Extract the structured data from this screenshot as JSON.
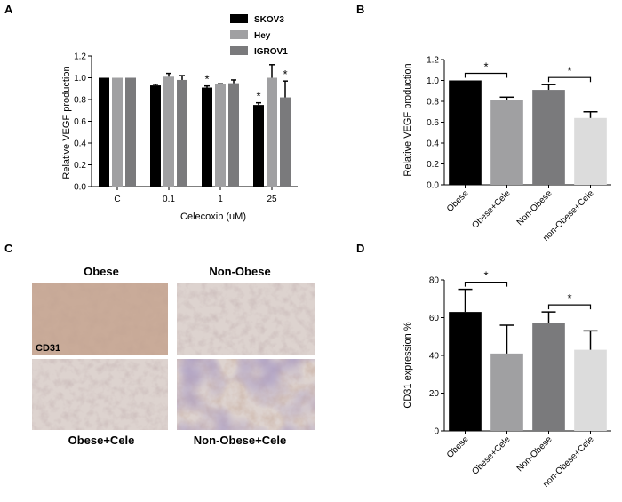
{
  "panel_labels": {
    "a": "A",
    "b": "B",
    "c": "C",
    "d": "D"
  },
  "micrograph": {
    "captions": [
      "Obese",
      "Non-Obese",
      "Obese+Cele",
      "Non-Obese+Cele"
    ],
    "stain_label": "CD31",
    "colors": {
      "brown": "#c9ab99",
      "light": "#ddd3cf",
      "purple": "#85779a"
    }
  },
  "chart_data": [
    {
      "panel": "A",
      "type": "bar",
      "title": "",
      "categories": [
        "C",
        "0.1",
        "1",
        "25"
      ],
      "xlabel": "Celecoxib (uM)",
      "ylabel": "Relative VEGF production",
      "ylim": [
        0.0,
        1.2
      ],
      "yticks": [
        "0.0",
        "0.2",
        "0.4",
        "0.6",
        "0.8",
        "1.0",
        "1.2"
      ],
      "grid": false,
      "legend_position": "top-right",
      "series": [
        {
          "name": "SKOV3",
          "color": "#000000",
          "values": [
            1.0,
            0.93,
            0.91,
            0.75
          ],
          "errors": [
            0.0,
            0.01,
            0.015,
            0.02
          ]
        },
        {
          "name": "Hey",
          "color": "#a0a0a2",
          "values": [
            1.0,
            1.01,
            0.94,
            1.0
          ],
          "errors": [
            0.0,
            0.03,
            0.005,
            0.12
          ]
        },
        {
          "name": "IGROV1",
          "color": "#7a7a7c",
          "values": [
            1.0,
            0.98,
            0.95,
            0.82
          ],
          "errors": [
            0.0,
            0.04,
            0.03,
            0.15
          ]
        }
      ],
      "annotations": [
        {
          "text": "*",
          "category": "1",
          "series": "SKOV3"
        },
        {
          "text": "*",
          "category": "25",
          "series": "SKOV3"
        },
        {
          "text": "*",
          "category": "25",
          "series": "IGROV1"
        }
      ]
    },
    {
      "panel": "B",
      "type": "bar",
      "title": "",
      "categories": [
        "Obese",
        "Obese+Cele",
        "Non-Obese",
        "non-Obese+Cele"
      ],
      "ylabel": "Relative VEGF production",
      "ylim": [
        0.0,
        1.2
      ],
      "yticks": [
        "0.0",
        "0.2",
        "0.4",
        "0.6",
        "0.8",
        "1.0",
        "1.2"
      ],
      "grid": false,
      "values": [
        1.0,
        0.81,
        0.91,
        0.64
      ],
      "errors": [
        0.0,
        0.03,
        0.05,
        0.06
      ],
      "colors": [
        "#000000",
        "#a0a0a2",
        "#7a7a7c",
        "#dcdcdc"
      ],
      "significance": [
        {
          "from": "Obese",
          "to": "Obese+Cele",
          "label": "*"
        },
        {
          "from": "Non-Obese",
          "to": "non-Obese+Cele",
          "label": "*"
        }
      ]
    },
    {
      "panel": "D",
      "type": "bar",
      "title": "",
      "categories": [
        "Obese",
        "Obese+Cele",
        "Non-Obese",
        "non-Obese+Cele"
      ],
      "ylabel": "CD31 expression %",
      "ylim": [
        0,
        80
      ],
      "yticks": [
        "0",
        "20",
        "40",
        "60",
        "80"
      ],
      "grid": false,
      "values": [
        63,
        41,
        57,
        43
      ],
      "errors": [
        12,
        15,
        6,
        10
      ],
      "colors": [
        "#000000",
        "#a0a0a2",
        "#7a7a7c",
        "#dcdcdc"
      ],
      "significance": [
        {
          "from": "Obese",
          "to": "Obese+Cele",
          "label": "*"
        },
        {
          "from": "Non-Obese",
          "to": "non-Obese+Cele",
          "label": "*"
        }
      ]
    }
  ]
}
